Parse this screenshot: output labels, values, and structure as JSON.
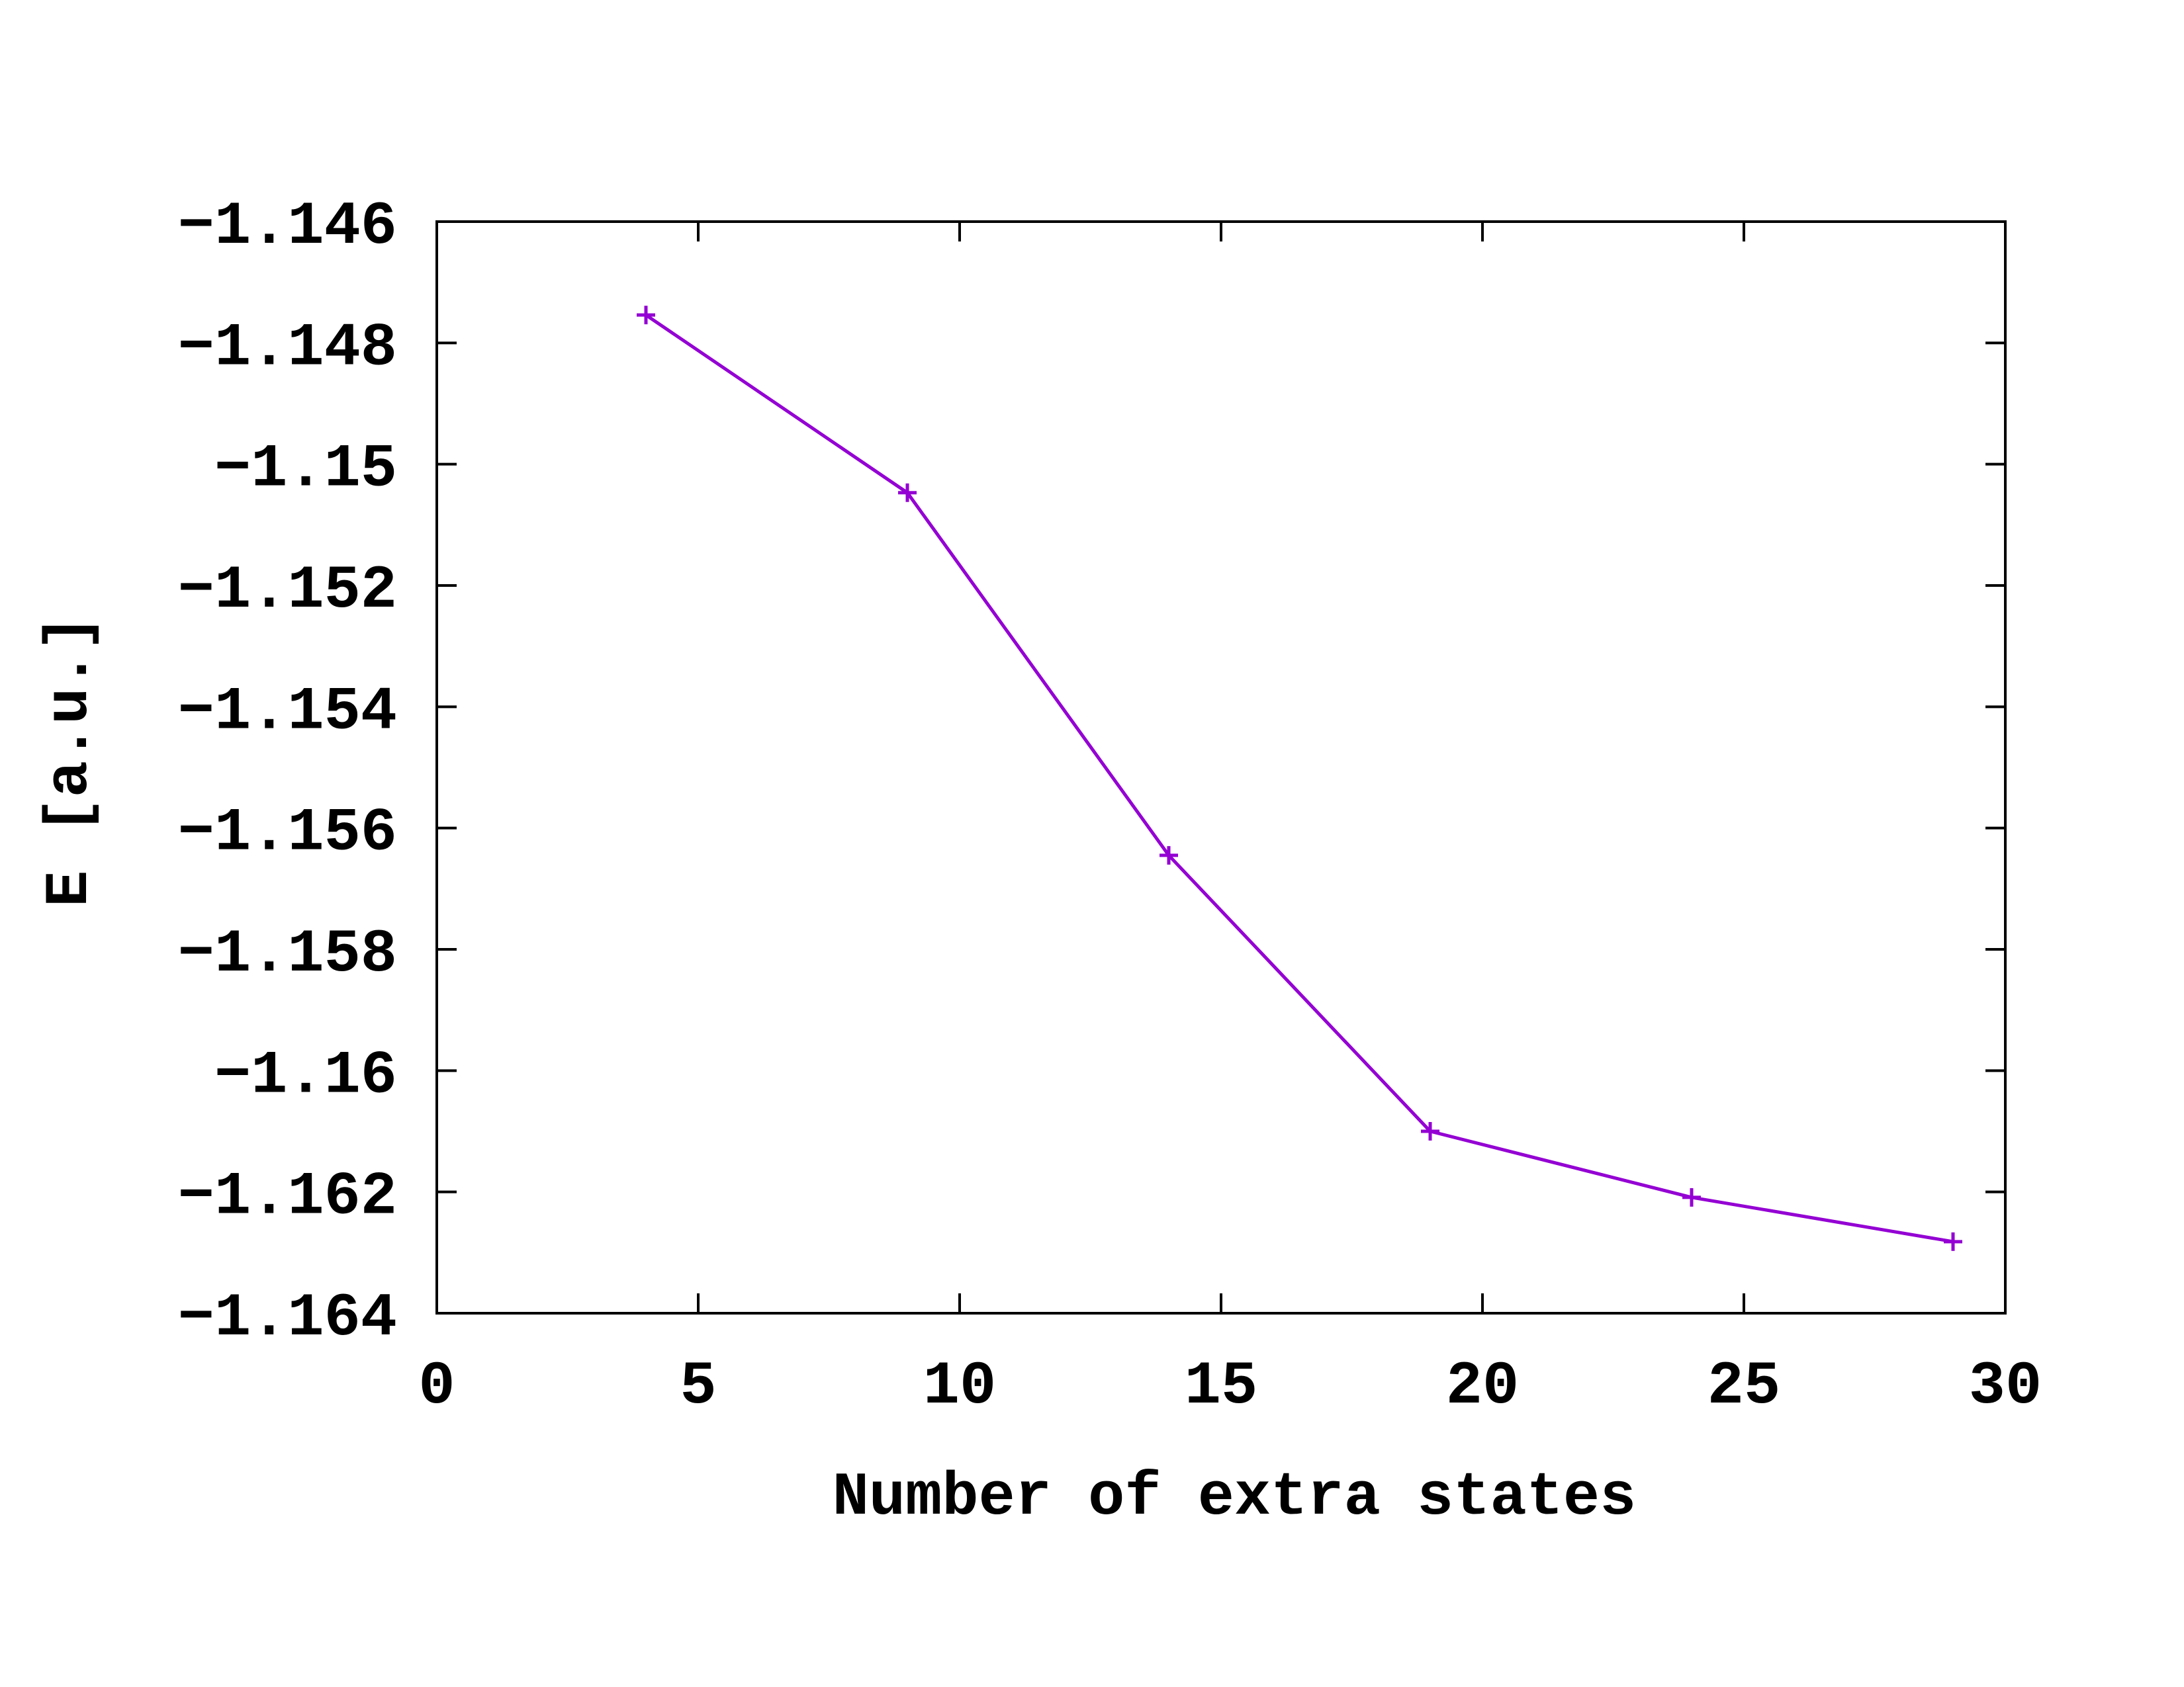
{
  "chart_data": {
    "type": "line",
    "title": "",
    "xlabel": "Number of extra states",
    "ylabel": "E [a.u.]",
    "xlim": [
      0,
      30
    ],
    "ylim": [
      -1.164,
      -1.146
    ],
    "x_ticks": [
      "0",
      "5",
      "10",
      "15",
      "20",
      "25",
      "30"
    ],
    "y_ticks": [
      "−1.146",
      "−1.148",
      "−1.15",
      "−1.152",
      "−1.154",
      "−1.156",
      "−1.158",
      "−1.16",
      "−1.162",
      "−1.164"
    ],
    "grid": false,
    "legend": "none",
    "marker": "plus",
    "color": "#9400d3",
    "series": [
      {
        "x": [
          4,
          9,
          14,
          19,
          24,
          29
        ],
        "y": [
          -1.14754,
          -1.15047,
          -1.15645,
          -1.161,
          -1.16209,
          -1.16282
        ]
      }
    ]
  }
}
